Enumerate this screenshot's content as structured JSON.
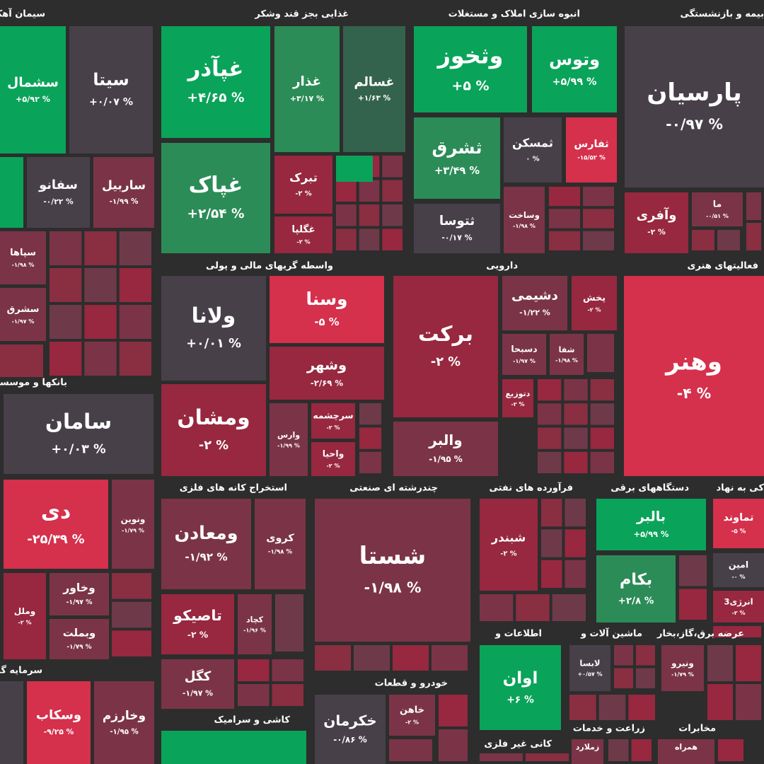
{
  "sectors": [
    {
      "title": "سیمان آهک گچ",
      "tiles": [
        {
          "name": "سشمال",
          "change": "+۵/۹۲ %"
        },
        {
          "name": "سیتا",
          "change": "+۰/۰۷ %"
        },
        {
          "name": "سفانو",
          "change": "-۰/۲۲ %"
        },
        {
          "name": "ساربیل",
          "change": "-۱/۹۹ %"
        },
        {
          "name": "سپاها",
          "change": "-۱/۹۸ %"
        },
        {
          "name": "سشرق",
          "change": "-۱/۹۷ %"
        }
      ]
    },
    {
      "title": "غذایی بجز قند وشکر",
      "tiles": [
        {
          "name": "غپآذر",
          "change": "+۴/۶۵ %"
        },
        {
          "name": "غذار",
          "change": "+۳/۱۷ %"
        },
        {
          "name": "غسالم",
          "change": "+۱/۶۳ %"
        },
        {
          "name": "غپاک",
          "change": "+۲/۵۴ %"
        },
        {
          "name": "تبرک",
          "change": "-۲ %"
        },
        {
          "name": "غگلپا",
          "change": "-۲ %"
        }
      ]
    },
    {
      "title": "انبوه سازی املاک و مستغلات",
      "tiles": [
        {
          "name": "وثخوز",
          "change": "+۵ %"
        },
        {
          "name": "وتوس",
          "change": "+۵/۹۹ %"
        },
        {
          "name": "ثشرق",
          "change": "+۳/۴۹ %"
        },
        {
          "name": "ثمسکن",
          "change": "۰ %"
        },
        {
          "name": "ثفارس",
          "change": "-۱۵/۵۲ %"
        },
        {
          "name": "ثتوسا",
          "change": "-۰/۱۷ %"
        },
        {
          "name": "وساخت",
          "change": "-۱/۹۸ %"
        }
      ]
    },
    {
      "title": "بیمه و بازنشستگی",
      "tiles": [
        {
          "name": "پارسیان",
          "change": "-۰/۹۷ %"
        },
        {
          "name": "وآفری",
          "change": "-۲ %"
        },
        {
          "name": "ما",
          "change": "-۰/۵۱ %"
        }
      ]
    },
    {
      "title": "واسطه گریهای مالی و پولی",
      "tiles": [
        {
          "name": "ولانا",
          "change": "+۰/۰۱ %"
        },
        {
          "name": "وسنا",
          "change": "-۵ %"
        },
        {
          "name": "وشهر",
          "change": "-۲/۶۹ %"
        },
        {
          "name": "ومشان",
          "change": "-۲ %"
        },
        {
          "name": "وارس",
          "change": "-۱/۹۹ %"
        },
        {
          "name": "سرچشمه",
          "change": "-۲ %"
        },
        {
          "name": "واحیا",
          "change": "-۲ %"
        }
      ]
    },
    {
      "title": "دارویی",
      "tiles": [
        {
          "name": "برکت",
          "change": "-۲ %"
        },
        {
          "name": "دشیمی",
          "change": "-۱/۲۲ %"
        },
        {
          "name": "پخش",
          "change": "-۲ %"
        },
        {
          "name": "دسبحا",
          "change": "-۱/۹۷ %"
        },
        {
          "name": "شفا",
          "change": "-۱/۹۸ %"
        },
        {
          "name": "دتوزیع",
          "change": "-۲ %"
        },
        {
          "name": "والبر",
          "change": "-۱/۹۵ %"
        }
      ]
    },
    {
      "title": "فعالیتهای هنری",
      "tiles": [
        {
          "name": "وهنر",
          "change": "-۴ %"
        }
      ]
    },
    {
      "title": "بانکها و موسسات",
      "tiles": [
        {
          "name": "سامان",
          "change": "+۰/۰۳ %"
        },
        {
          "name": "دی",
          "change": "-۲۵/۳۹ %"
        },
        {
          "name": "ونوین",
          "change": "-۱/۷۹ %"
        },
        {
          "name": "وملل",
          "change": "-۲ %"
        },
        {
          "name": "وخاور",
          "change": "-۱/۹۷ %"
        },
        {
          "name": "وبملت",
          "change": "-۱/۷۹ %"
        }
      ]
    },
    {
      "title": "استخراج کانه های فلزی",
      "tiles": [
        {
          "name": "ومعادن",
          "change": "-۱/۹۲ %"
        },
        {
          "name": "کروی",
          "change": "-۱/۹۸ %"
        },
        {
          "name": "تاصیکو",
          "change": "-۲ %"
        },
        {
          "name": "کچاد",
          "change": "-۱/۹۶ %"
        },
        {
          "name": "کگل",
          "change": "-۱/۹۷ %"
        }
      ]
    },
    {
      "title": "چندرشته ای صنعتی",
      "tiles": [
        {
          "name": "شستا",
          "change": "-۱/۹۸ %"
        }
      ]
    },
    {
      "title": "فرآورده های نفتی",
      "tiles": [
        {
          "name": "شبندر",
          "change": "-۲ %"
        }
      ]
    },
    {
      "title": "دستگاههای برقی",
      "tiles": [
        {
          "name": "بالبر",
          "change": "+۵/۹۹ %"
        },
        {
          "name": "بکام",
          "change": "+۲/۸ %"
        }
      ]
    },
    {
      "title": "کی به نهاد",
      "tiles": [
        {
          "name": "تماوند",
          "change": "-۵ %"
        },
        {
          "name": "امین",
          "change": "-۰ %"
        },
        {
          "name": "انرژی3",
          "change": "-۲ %"
        }
      ]
    },
    {
      "title": "اطلاعات و",
      "tiles": [
        {
          "name": "اوان",
          "change": "+۶ %"
        }
      ]
    },
    {
      "title": "ماشین آلات و",
      "tiles": [
        {
          "name": "لابسا",
          "change": "+۰/۵۷ %"
        }
      ]
    },
    {
      "title": "عرضه برق،گاز،بخار",
      "tiles": [
        {
          "name": "ونیرو",
          "change": "-۱/۷۹ %"
        }
      ]
    },
    {
      "title": "سرمایه گذاری",
      "tiles": [
        {
          "name": "وسکاب",
          "change": "-۹/۲۵ %"
        },
        {
          "name": "وخارزم",
          "change": "-۱/۹۵ %"
        }
      ]
    },
    {
      "title": "خودرو و قطعات",
      "tiles": [
        {
          "name": "خکرمان",
          "change": "-۰/۸۶ %"
        },
        {
          "name": "خاهن",
          "change": "-۲ %"
        }
      ]
    },
    {
      "title": "کاشی و سرامیک",
      "tiles": []
    },
    {
      "title": "کانی غیر فلزی",
      "tiles": []
    },
    {
      "title": "زراعت و خدمات",
      "tiles": [
        {
          "name": "زملارد",
          "change": ""
        }
      ]
    },
    {
      "title": "مخابرات",
      "tiles": [
        {
          "name": "همراه",
          "change": ""
        }
      ]
    }
  ]
}
